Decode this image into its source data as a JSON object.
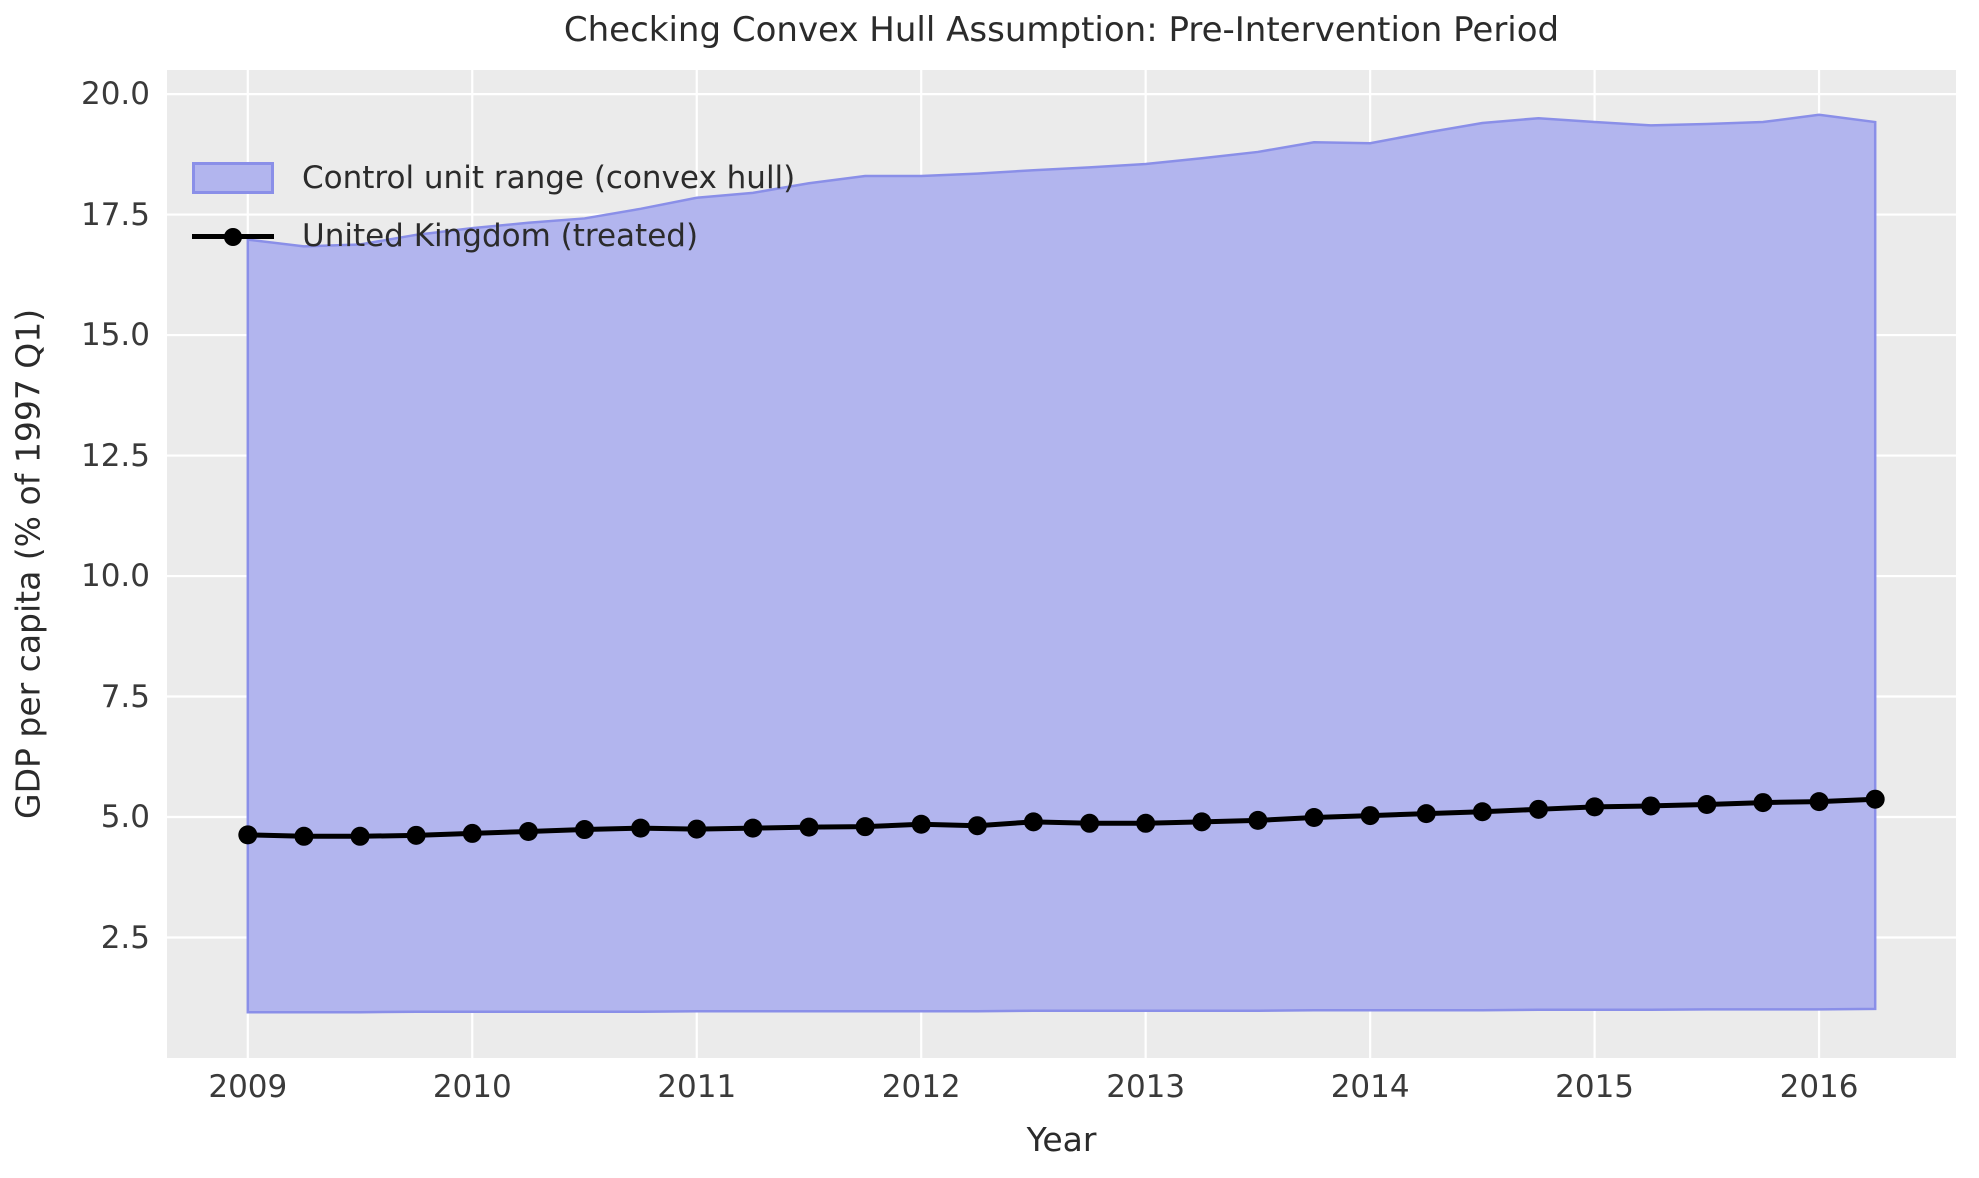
{
  "title": "Checking Convex Hull Assumption: Pre-Intervention Period",
  "axes": {
    "xlabel": "Year",
    "ylabel": "GDP per capita (% of 1997 Q1)",
    "x_tick_labels": [
      "2009",
      "2010",
      "2011",
      "2012",
      "2013",
      "2014",
      "2015",
      "2016"
    ],
    "x_tick_values": [
      2009,
      2010,
      2011,
      2012,
      2013,
      2014,
      2015,
      2016
    ],
    "y_tick_labels": [
      "2.5",
      "5.0",
      "7.5",
      "10.0",
      "12.5",
      "15.0",
      "17.5",
      "20.0"
    ],
    "y_tick_values": [
      2.5,
      5.0,
      7.5,
      10.0,
      12.5,
      15.0,
      17.5,
      20.0
    ]
  },
  "legend": {
    "items": [
      {
        "label": "Control unit range (convex hull)",
        "marker": "band-swatch"
      },
      {
        "label": "United Kingdom (treated)",
        "marker": "line-with-dot"
      }
    ],
    "position": "upper left",
    "frame": false
  },
  "colors": {
    "plot_bg": "#ebebeb",
    "grid": "#ffffff",
    "band_fill": "#b2b5ee",
    "band_edge": "#8a8fe8",
    "treated_line": "#000000",
    "text": "#2b2b2b"
  },
  "chart_data": {
    "type": "area",
    "title": "Checking Convex Hull Assumption: Pre-Intervention Period",
    "xlabel": "Year",
    "ylabel": "GDP per capita (% of 1997 Q1)",
    "xlim": [
      2008.64,
      2016.61
    ],
    "ylim": [
      0,
      20.5
    ],
    "grid": true,
    "legend_position": "upper left",
    "x": [
      2009.0,
      2009.25,
      2009.5,
      2009.75,
      2010.0,
      2010.25,
      2010.5,
      2010.75,
      2011.0,
      2011.25,
      2011.5,
      2011.75,
      2012.0,
      2012.25,
      2012.5,
      2012.75,
      2013.0,
      2013.25,
      2013.5,
      2013.75,
      2014.0,
      2014.25,
      2014.5,
      2014.75,
      2015.0,
      2015.25,
      2015.5,
      2015.75,
      2016.0,
      2016.25
    ],
    "series": [
      {
        "name": "Control unit range (convex hull)",
        "type": "band",
        "upper": [
          16.98,
          16.84,
          16.88,
          17.08,
          17.22,
          17.33,
          17.42,
          17.62,
          17.85,
          17.95,
          18.15,
          18.3,
          18.3,
          18.35,
          18.42,
          18.48,
          18.55,
          18.67,
          18.8,
          19.0,
          18.98,
          19.2,
          19.4,
          19.5,
          19.42,
          19.35,
          19.38,
          19.42,
          19.57,
          19.42
        ],
        "lower": [
          0.95,
          0.95,
          0.95,
          0.96,
          0.96,
          0.96,
          0.96,
          0.96,
          0.97,
          0.97,
          0.97,
          0.97,
          0.97,
          0.97,
          0.98,
          0.98,
          0.98,
          0.98,
          0.98,
          0.99,
          0.99,
          0.99,
          0.99,
          1.0,
          1.0,
          1.0,
          1.01,
          1.01,
          1.01,
          1.02
        ]
      },
      {
        "name": "United Kingdom (treated)",
        "type": "line",
        "marker": "circle",
        "values": [
          4.63,
          4.6,
          4.6,
          4.62,
          4.66,
          4.7,
          4.74,
          4.77,
          4.75,
          4.77,
          4.79,
          4.8,
          4.85,
          4.82,
          4.9,
          4.87,
          4.87,
          4.9,
          4.93,
          4.99,
          5.03,
          5.07,
          5.11,
          5.16,
          5.21,
          5.23,
          5.26,
          5.3,
          5.32,
          5.37
        ]
      }
    ]
  }
}
